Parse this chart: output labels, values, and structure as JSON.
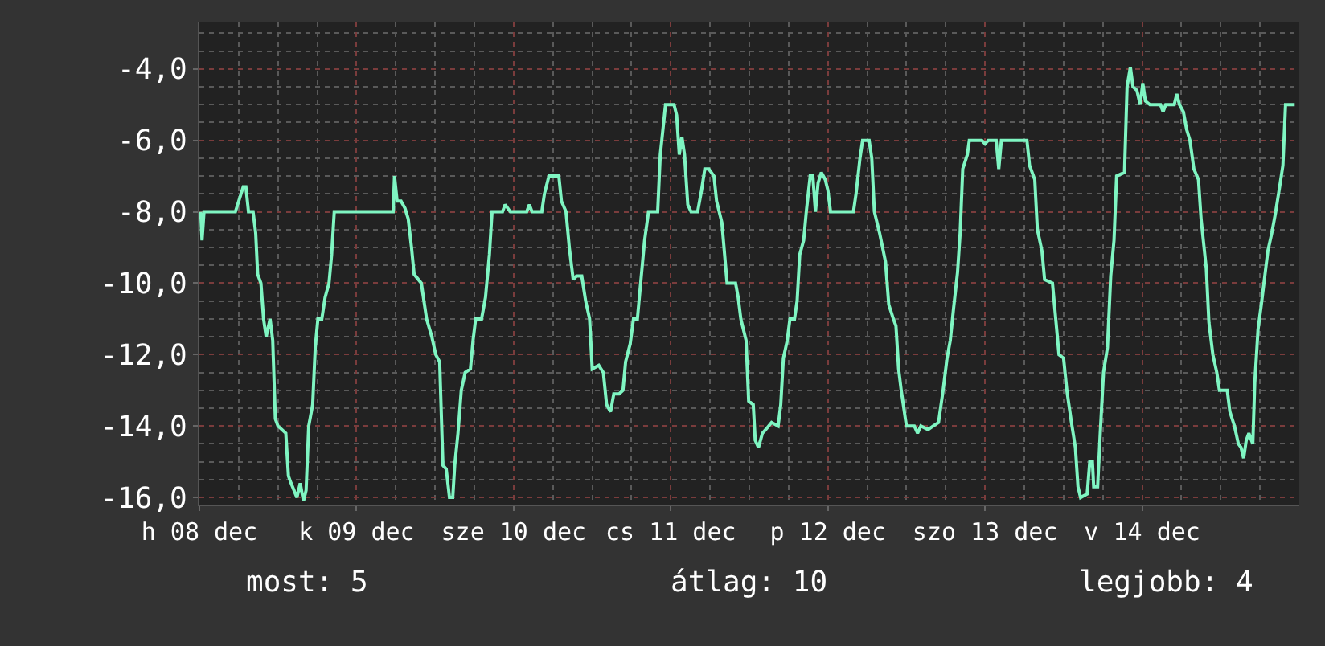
{
  "chart_data": {
    "type": "line",
    "x": [
      "--12-08T12:12",
      "--12-08T12:24",
      "--12-08T12:42",
      "--12-08T17:30",
      "--12-08T18:42",
      "--12-08T19:06",
      "--12-08T19:30",
      "--12-08T20:12",
      "--12-08T20:36",
      "--12-08T20:54",
      "--12-08T21:24",
      "--12-08T21:48",
      "--12-08T22:12",
      "--12-08T22:48",
      "--12-08T23:12",
      "--12-08T23:36",
      "--12-09T00:00",
      "--12-09T01:12",
      "--12-09T01:36",
      "--12-09T02:00",
      "--12-09T02:54",
      "--12-09T03:24",
      "--12-09T03:54",
      "--12-09T04:18",
      "--12-09T04:42",
      "--12-09T05:18",
      "--12-09T05:42",
      "--12-09T06:06",
      "--12-09T06:42",
      "--12-09T07:12",
      "--12-09T07:48",
      "--12-09T08:12",
      "--12-09T08:36",
      "--12-09T17:36",
      "--12-09T17:48",
      "--12-09T18:12",
      "--12-09T18:48",
      "--12-09T19:24",
      "--12-09T19:54",
      "--12-09T20:24",
      "--12-09T20:48",
      "--12-09T21:54",
      "--12-09T22:42",
      "--12-09T23:30",
      "--12-10T00:06",
      "--12-10T00:42",
      "--12-10T01:12",
      "--12-10T01:42",
      "--12-10T02:12",
      "--12-10T02:42",
      "--12-10T03:00",
      "--12-10T03:30",
      "--12-10T04:00",
      "--12-10T04:36",
      "--12-10T05:24",
      "--12-10T05:48",
      "--12-10T06:12",
      "--12-10T07:06",
      "--12-10T07:42",
      "--12-10T08:18",
      "--12-10T08:42",
      "--12-10T10:18",
      "--12-10T10:42",
      "--12-10T11:30",
      "--12-10T14:00",
      "--12-10T14:24",
      "--12-10T14:48",
      "--12-10T16:18",
      "--12-10T16:42",
      "--12-10T17:24",
      "--12-10T18:54",
      "--12-10T19:18",
      "--12-10T20:00",
      "--12-10T20:30",
      "--12-10T21:06",
      "--12-10T21:36",
      "--12-10T22:24",
      "--12-10T23:00",
      "--12-10T23:36",
      "--12-11T00:00",
      "--12-11T01:00",
      "--12-11T01:42",
      "--12-11T02:12",
      "--12-11T02:48",
      "--12-11T03:18",
      "--12-11T04:06",
      "--12-11T04:42",
      "--12-11T05:06",
      "--12-11T05:48",
      "--12-11T06:18",
      "--12-11T06:54",
      "--12-11T07:24",
      "--12-11T08:00",
      "--12-11T08:36",
      "--12-11T10:00",
      "--12-11T10:24",
      "--12-11T11:12",
      "--12-11T12:30",
      "--12-11T12:54",
      "--12-11T13:18",
      "--12-11T13:42",
      "--12-11T14:06",
      "--12-11T14:36",
      "--12-11T15:06",
      "--12-11T16:06",
      "--12-11T16:42",
      "--12-11T17:12",
      "--12-11T17:48",
      "--12-11T18:36",
      "--12-11T19:00",
      "--12-11T19:48",
      "--12-11T20:36",
      "--12-11T21:54",
      "--12-11T22:18",
      "--12-11T22:42",
      "--12-11T23:30",
      "--12-11T23:54",
      "--12-12T00:36",
      "--12-12T00:54",
      "--12-12T01:24",
      "--12-12T02:00",
      "--12-12T02:30",
      "--12-12T03:24",
      "--12-12T04:24",
      "--12-12T04:48",
      "--12-12T05:12",
      "--12-12T05:48",
      "--12-12T06:12",
      "--12-12T06:54",
      "--12-12T07:18",
      "--12-12T07:42",
      "--12-12T08:18",
      "--12-12T08:42",
      "--12-12T09:18",
      "--12-12T09:42",
      "--12-12T10:06",
      "--12-12T10:30",
      "--12-12T11:00",
      "--12-12T11:36",
      "--12-12T12:00",
      "--12-12T12:24",
      "--12-12T15:54",
      "--12-12T16:18",
      "--12-12T16:54",
      "--12-12T17:18",
      "--12-12T18:18",
      "--12-12T18:42",
      "--12-12T19:06",
      "--12-12T19:54",
      "--12-12T20:48",
      "--12-12T21:18",
      "--12-12T22:00",
      "--12-12T22:24",
      "--12-12T22:48",
      "--12-12T23:12",
      "--12-13T00:00",
      "--12-13T01:12",
      "--12-13T01:42",
      "--12-13T02:12",
      "--12-13T03:18",
      "--12-13T04:06",
      "--12-13T04:54",
      "--12-13T05:36",
      "--12-13T06:12",
      "--12-13T06:42",
      "--12-13T07:12",
      "--12-13T07:48",
      "--12-13T08:12",
      "--12-13T08:36",
      "--12-13T09:18",
      "--12-13T09:36",
      "--12-13T11:30",
      "--12-13T12:00",
      "--12-13T12:30",
      "--12-13T13:42",
      "--12-13T14:06",
      "--12-13T14:30",
      "--12-13T18:24",
      "--12-13T18:48",
      "--12-13T19:36",
      "--12-13T20:00",
      "--12-13T20:42",
      "--12-13T21:06",
      "--12-13T22:18",
      "--12-13T22:54",
      "--12-13T23:18",
      "--12-14T00:00",
      "--12-14T00:30",
      "--12-14T01:12",
      "--12-14T01:48",
      "--12-14T02:12",
      "--12-14T02:36",
      "--12-14T03:36",
      "--12-14T04:00",
      "--12-14T04:24",
      "--12-14T04:36",
      "--12-14T05:12",
      "--12-14T05:36",
      "--12-14T06:06",
      "--12-14T06:42",
      "--12-14T07:12",
      "--12-14T07:42",
      "--12-14T08:06",
      "--12-14T09:18",
      "--12-14T09:42",
      "--12-14T10:12",
      "--12-14T10:36",
      "--12-14T11:12",
      "--12-14T11:42",
      "--12-14T12:06",
      "--12-14T12:30",
      "--12-14T13:12",
      "--12-14T14:48",
      "--12-14T15:12",
      "--12-14T15:36",
      "--12-14T16:54",
      "--12-14T17:18",
      "--12-14T17:42",
      "--12-14T18:18",
      "--12-14T18:48",
      "--12-14T19:18",
      "--12-14T19:54",
      "--12-14T20:36",
      "--12-14T21:00",
      "--12-14T21:48",
      "--12-14T22:12",
      "--12-14T22:48",
      "--12-14T23:24",
      "--12-14T23:48",
      "--12-15T01:00",
      "--12-15T01:24",
      "--12-15T02:06",
      "--12-15T02:42",
      "--12-15T03:06",
      "--12-15T03:30",
      "--12-15T03:54",
      "--12-15T04:18",
      "--12-15T04:54",
      "--12-15T05:12",
      "--12-15T05:42",
      "--12-15T06:12",
      "--12-15T06:48",
      "--12-15T07:12",
      "--12-15T07:48",
      "--12-15T08:24",
      "--12-15T09:00",
      "--12-15T09:30",
      "--12-15T09:54",
      "--12-15T11:18"
    ],
    "series": [
      {
        "color": "#7ff5c2",
        "values": [
          -8,
          -8.8,
          -8,
          -8,
          -7.3,
          -7.3,
          -8,
          -8,
          -8.6,
          -9.75,
          -10,
          -11,
          -11.5,
          -11,
          -11.6,
          -13.8,
          -14,
          -14.2,
          -15.4,
          -15.6,
          -16,
          -15.6,
          -16.1,
          -15.8,
          -14,
          -13.4,
          -11.8,
          -11,
          -11,
          -10.4,
          -10,
          -9.2,
          -8,
          -8,
          -7,
          -7.7,
          -7.7,
          -7.9,
          -8.2,
          -9,
          -9.75,
          -10,
          -11,
          -11.5,
          -12,
          -12.2,
          -15.1,
          -15.2,
          -16,
          -16,
          -15.1,
          -14.2,
          -13,
          -12.5,
          -12.4,
          -11.6,
          -11,
          -11,
          -10.4,
          -9.2,
          -8,
          -8,
          -7.8,
          -8,
          -8,
          -7.8,
          -8,
          -8,
          -7.5,
          -7,
          -7,
          -7.7,
          -8,
          -9,
          -9.9,
          -9.8,
          -9.8,
          -10.5,
          -11,
          -12.4,
          -12.3,
          -12.5,
          -13.4,
          -13.6,
          -13.1,
          -13.1,
          -13,
          -12.2,
          -11.7,
          -11,
          -11,
          -10,
          -8.8,
          -8,
          -8,
          -6.4,
          -5,
          -5,
          -5.3,
          -6.4,
          -5.9,
          -6.4,
          -7.8,
          -8,
          -8,
          -7.4,
          -6.8,
          -6.8,
          -7,
          -7.7,
          -8.3,
          -10,
          -10,
          -10.4,
          -11,
          -11.6,
          -13.3,
          -13.4,
          -14.4,
          -14.6,
          -14.2,
          -14.1,
          -13.9,
          -14,
          -13.4,
          -12.1,
          -11.6,
          -11,
          -11,
          -10.5,
          -9.2,
          -8.8,
          -8,
          -7,
          -7,
          -8,
          -7.2,
          -6.9,
          -7.1,
          -7.4,
          -8,
          -8,
          -7.5,
          -6.5,
          -6,
          -6,
          -6.5,
          -8,
          -8.6,
          -9.4,
          -10.6,
          -11,
          -11.2,
          -12.4,
          -13,
          -14,
          -14,
          -14.2,
          -14,
          -14.1,
          -14,
          -13.9,
          -13,
          -12.1,
          -11.6,
          -10.7,
          -9.7,
          -8.6,
          -6.8,
          -6.4,
          -6,
          -6,
          -6.1,
          -6,
          -6,
          -6.8,
          -6,
          -6,
          -6.7,
          -7.1,
          -8.5,
          -9.1,
          -9.9,
          -10,
          -11.2,
          -12,
          -12.1,
          -13,
          -13.9,
          -14.6,
          -15.7,
          -16,
          -15.9,
          -15,
          -15,
          -15.7,
          -15.7,
          -14.2,
          -12.5,
          -11.8,
          -9.8,
          -8.8,
          -7,
          -6.9,
          -4.5,
          -3.95,
          -4.5,
          -4.6,
          -5,
          -4.4,
          -4.9,
          -5,
          -5,
          -5.2,
          -5,
          -5,
          -4.7,
          -5,
          -5.2,
          -5.7,
          -6,
          -6.8,
          -7.1,
          -8.2,
          -9.6,
          -11.1,
          -12,
          -12.5,
          -13,
          -13,
          -13.6,
          -14,
          -14.5,
          -14.6,
          -14.9,
          -14.4,
          -14.2,
          -14.5,
          -12.8,
          -11.3,
          -10.6,
          -9.7,
          -9.1,
          -8.6,
          -8,
          -7.3,
          -6.7,
          -5,
          -5
        ]
      }
    ],
    "xlim": [
      "--12-08T12:00",
      "--12-15T12:00"
    ],
    "xticks": [
      {
        "value": "--12-08T12:00",
        "label": "h 08 dec"
      },
      {
        "value": "--12-08T18:00",
        "label": null
      },
      {
        "value": "--12-09T00:00",
        "label": null
      },
      {
        "value": "--12-09T06:00",
        "label": null
      },
      {
        "value": "--12-09T12:00",
        "label": "k 09 dec"
      },
      {
        "value": "--12-09T18:00",
        "label": null
      },
      {
        "value": "--12-10T00:00",
        "label": null
      },
      {
        "value": "--12-10T06:00",
        "label": null
      },
      {
        "value": "--12-10T12:00",
        "label": "sze 10 dec"
      },
      {
        "value": "--12-10T18:00",
        "label": null
      },
      {
        "value": "--12-11T00:00",
        "label": null
      },
      {
        "value": "--12-11T06:00",
        "label": null
      },
      {
        "value": "--12-11T12:00",
        "label": "cs 11 dec"
      },
      {
        "value": "--12-11T18:00",
        "label": null
      },
      {
        "value": "--12-12T00:00",
        "label": null
      },
      {
        "value": "--12-12T06:00",
        "label": null
      },
      {
        "value": "--12-12T12:00",
        "label": "p 12 dec"
      },
      {
        "value": "--12-12T18:00",
        "label": null
      },
      {
        "value": "--12-13T00:00",
        "label": null
      },
      {
        "value": "--12-13T06:00",
        "label": null
      },
      {
        "value": "--12-13T12:00",
        "label": "szo 13 dec"
      },
      {
        "value": "--12-13T18:00",
        "label": null
      },
      {
        "value": "--12-14T00:00",
        "label": null
      },
      {
        "value": "--12-14T06:00",
        "label": null
      },
      {
        "value": "--12-14T12:00",
        "label": "v 14 dec"
      },
      {
        "value": "--12-14T18:00",
        "label": null
      },
      {
        "value": "--12-15T00:00",
        "label": null
      },
      {
        "value": "--12-15T06:00",
        "label": null
      }
    ],
    "ylim": [
      -16.2,
      -2.7
    ],
    "yticks": [
      {
        "value": -16,
        "label": "-16,0"
      },
      {
        "value": -15.5,
        "label": null
      },
      {
        "value": -15,
        "label": null
      },
      {
        "value": -14.5,
        "label": null
      },
      {
        "value": -14,
        "label": "-14,0"
      },
      {
        "value": -13.5,
        "label": null
      },
      {
        "value": -13,
        "label": null
      },
      {
        "value": -12.5,
        "label": null
      },
      {
        "value": -12,
        "label": "-12,0"
      },
      {
        "value": -11.5,
        "label": null
      },
      {
        "value": -11,
        "label": null
      },
      {
        "value": -10.5,
        "label": null
      },
      {
        "value": -10,
        "label": "-10,0"
      },
      {
        "value": -9.5,
        "label": null
      },
      {
        "value": -9,
        "label": null
      },
      {
        "value": -8.5,
        "label": null
      },
      {
        "value": -8,
        "label": "-8,0"
      },
      {
        "value": -7.5,
        "label": null
      },
      {
        "value": -7,
        "label": null
      },
      {
        "value": -6.5,
        "label": null
      },
      {
        "value": -6,
        "label": "-6,0"
      },
      {
        "value": -5.5,
        "label": null
      },
      {
        "value": -5,
        "label": null
      },
      {
        "value": -4.5,
        "label": null
      },
      {
        "value": -4,
        "label": "-4,0"
      },
      {
        "value": -3.5,
        "label": null
      },
      {
        "value": -3,
        "label": null
      }
    ],
    "grid": true,
    "annotations": [
      "most: 5",
      "átlag: 10",
      "legjobb: 4"
    ]
  }
}
